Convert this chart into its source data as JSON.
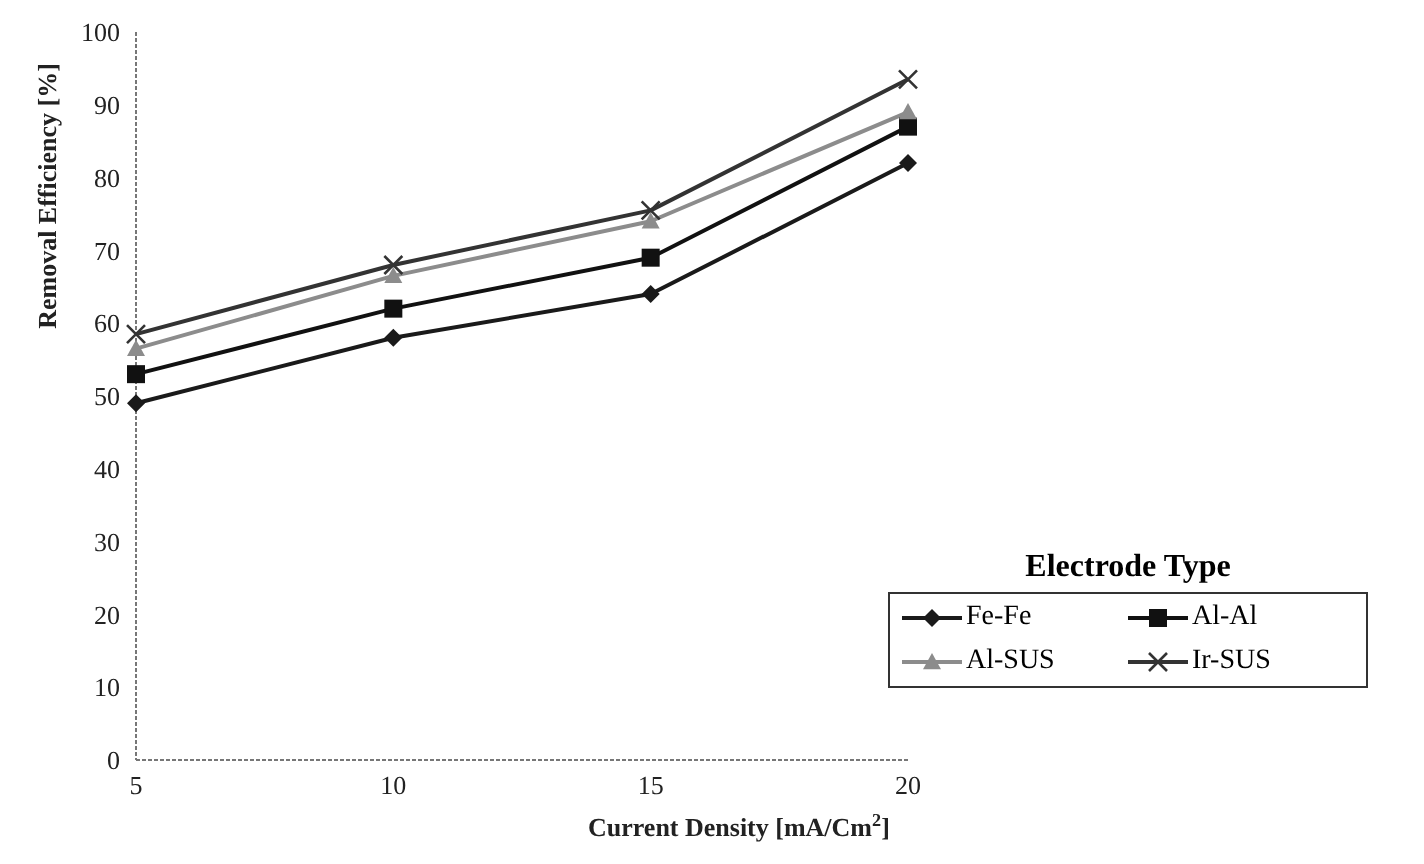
{
  "chart_data": {
    "type": "line",
    "xlabel": "Current Density [mA/Cm$^{2}$]",
    "ylabel": "Removal Efficiency [%]",
    "legend_title": "Electrode Type",
    "categories": [
      "5",
      "10",
      "15",
      "20"
    ],
    "ylim": [
      0,
      100
    ],
    "yticks": [
      0,
      10,
      20,
      30,
      40,
      50,
      60,
      70,
      80,
      90,
      100
    ],
    "grid": false,
    "legend": "bottom right",
    "series": [
      {
        "name": "Fe-Fe",
        "color": "#1a1a1a",
        "marker": "diamond",
        "values": [
          49,
          58,
          64,
          82
        ]
      },
      {
        "name": "Al-Al",
        "color": "#111111",
        "marker": "square",
        "values": [
          53,
          62,
          69,
          87
        ]
      },
      {
        "name": "Al-SUS",
        "color": "#8c8c8c",
        "marker": "triangle",
        "values": [
          56.5,
          66.5,
          74,
          89
        ]
      },
      {
        "name": "Ir-SUS",
        "color": "#333333",
        "marker": "cross",
        "values": [
          58.5,
          68,
          75.5,
          93.5
        ]
      }
    ]
  }
}
